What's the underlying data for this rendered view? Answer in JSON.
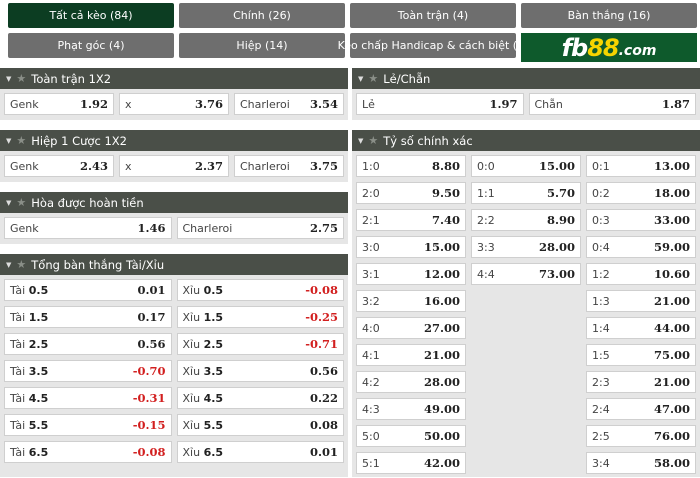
{
  "tabs": [
    {
      "label": "Tất cả kèo (84)",
      "active": true
    },
    {
      "label": "Chính (26)"
    },
    {
      "label": "Toàn trận (4)"
    },
    {
      "label": "Bàn thắng (16)"
    },
    {
      "label": "Phạt góc (4)"
    },
    {
      "label": "Hiệp (14)"
    },
    {
      "label": "Kèo chấp Handicap & cách biệt (3)"
    }
  ],
  "logo": {
    "fb": "fb",
    "n88": "88",
    "com": ".com",
    "bg": "#0e5a2c",
    "accent": "#f5d400"
  },
  "icons": {
    "caret": "▼",
    "star": "★"
  },
  "sections": {
    "full_1x2": {
      "title": "Toàn trận 1X2",
      "cells": [
        {
          "label": "Genk",
          "odd": "1.92"
        },
        {
          "label": "x",
          "odd": "3.76"
        },
        {
          "label": "Charleroi",
          "odd": "3.54"
        }
      ]
    },
    "half1_1x2": {
      "title": "Hiệp 1 Cược 1X2",
      "cells": [
        {
          "label": "Genk",
          "odd": "2.43"
        },
        {
          "label": "x",
          "odd": "2.37"
        },
        {
          "label": "Charleroi",
          "odd": "3.75"
        }
      ]
    },
    "dnb": {
      "title": "Hòa được hoàn tiền",
      "cells": [
        {
          "label": "Genk",
          "odd": "1.46"
        },
        {
          "label": "Charleroi",
          "odd": "2.75"
        }
      ]
    },
    "over_under": {
      "title": "Tổng bàn thắng Tài/Xỉu",
      "over_prefix": "Tài",
      "under_prefix": "Xỉu",
      "rows": [
        {
          "line": "0.5",
          "over": "0.01",
          "under": "-0.08"
        },
        {
          "line": "1.5",
          "over": "0.17",
          "under": "-0.25"
        },
        {
          "line": "2.5",
          "over": "0.56",
          "under": "-0.71"
        },
        {
          "line": "3.5",
          "over": "-0.70",
          "under": "0.56"
        },
        {
          "line": "4.5",
          "over": "-0.31",
          "under": "0.22"
        },
        {
          "line": "5.5",
          "over": "-0.15",
          "under": "0.08"
        },
        {
          "line": "6.5",
          "over": "-0.08",
          "under": "0.01"
        }
      ]
    },
    "odd_even": {
      "title": "Lẻ/Chẵn",
      "cells": [
        {
          "label": "Lẻ",
          "odd": "1.97"
        },
        {
          "label": "Chẵn",
          "odd": "1.87"
        }
      ]
    },
    "correct_score": {
      "title": "Tỷ số chính xác",
      "home": [
        {
          "score": "1:0",
          "odd": "8.80"
        },
        {
          "score": "2:0",
          "odd": "9.50"
        },
        {
          "score": "2:1",
          "odd": "7.40"
        },
        {
          "score": "3:0",
          "odd": "15.00"
        },
        {
          "score": "3:1",
          "odd": "12.00"
        },
        {
          "score": "3:2",
          "odd": "16.00"
        },
        {
          "score": "4:0",
          "odd": "27.00"
        },
        {
          "score": "4:1",
          "odd": "21.00"
        },
        {
          "score": "4:2",
          "odd": "28.00"
        },
        {
          "score": "4:3",
          "odd": "49.00"
        },
        {
          "score": "5:0",
          "odd": "50.00"
        },
        {
          "score": "5:1",
          "odd": "42.00"
        }
      ],
      "draw": [
        {
          "score": "0:0",
          "odd": "15.00"
        },
        {
          "score": "1:1",
          "odd": "5.70"
        },
        {
          "score": "2:2",
          "odd": "8.90"
        },
        {
          "score": "3:3",
          "odd": "28.00"
        },
        {
          "score": "4:4",
          "odd": "73.00"
        }
      ],
      "away": [
        {
          "score": "0:1",
          "odd": "13.00"
        },
        {
          "score": "0:2",
          "odd": "18.00"
        },
        {
          "score": "0:3",
          "odd": "33.00"
        },
        {
          "score": "0:4",
          "odd": "59.00"
        },
        {
          "score": "1:2",
          "odd": "10.60"
        },
        {
          "score": "1:3",
          "odd": "21.00"
        },
        {
          "score": "1:4",
          "odd": "44.00"
        },
        {
          "score": "1:5",
          "odd": "75.00"
        },
        {
          "score": "2:3",
          "odd": "21.00"
        },
        {
          "score": "2:4",
          "odd": "47.00"
        },
        {
          "score": "2:5",
          "odd": "76.00"
        },
        {
          "score": "3:4",
          "odd": "58.00"
        }
      ]
    }
  },
  "colors": {
    "tab_active": "#0c3d22",
    "tab_inactive": "#6e6e6e",
    "section_header": "#4a4f48",
    "negative_odd": "#d21f1f"
  }
}
